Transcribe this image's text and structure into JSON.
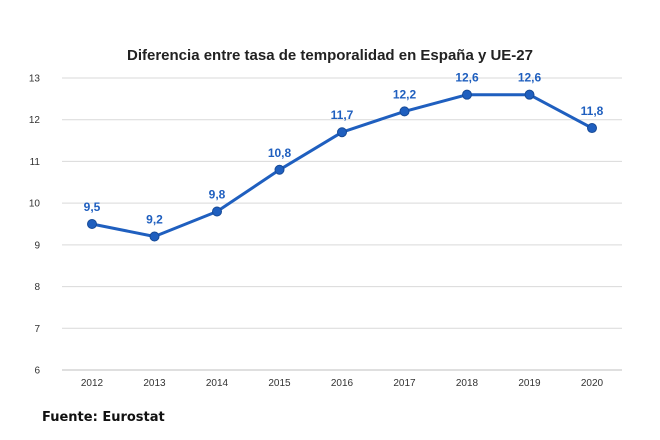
{
  "chart_data": {
    "type": "line",
    "title": "Diferencia entre tasa de temporalidad en España y UE-27",
    "xlabel": "",
    "ylabel": "",
    "categories": [
      "2012",
      "2013",
      "2014",
      "2015",
      "2016",
      "2017",
      "2018",
      "2019",
      "2020"
    ],
    "series": [
      {
        "values": [
          9.5,
          9.2,
          9.8,
          10.8,
          11.7,
          12.2,
          12.6,
          12.6,
          11.8
        ],
        "labels": [
          "9,5",
          "9,2",
          "9,8",
          "10,8",
          "11,7",
          "12,2",
          "12,6",
          "12,6",
          "11,8"
        ],
        "color": "#1f5fbf"
      }
    ],
    "ylim": [
      6,
      13
    ],
    "yticks": [
      6,
      7,
      8,
      9,
      10,
      11,
      12,
      13
    ],
    "grid": true,
    "legend": "none"
  },
  "source": "Fuente: Eurostat"
}
